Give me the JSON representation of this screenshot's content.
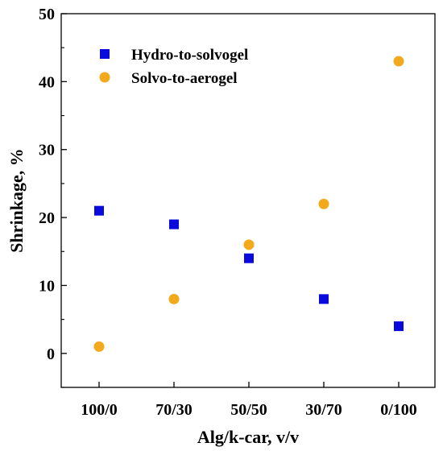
{
  "chart_data": {
    "type": "scatter",
    "categories": [
      "100/0",
      "70/30",
      "50/50",
      "30/70",
      "0/100"
    ],
    "series": [
      {
        "name": "Hydro-to-solvogel",
        "marker": "square",
        "color": "#0a0adc",
        "values": [
          21,
          19,
          14,
          8,
          4
        ]
      },
      {
        "name": "Solvo-to-aerogel",
        "marker": "circle",
        "color": "#f2a91c",
        "values": [
          1,
          8,
          16,
          22,
          43
        ]
      }
    ],
    "xlabel": "Alg/k-car, v/v",
    "ylabel": "Shrinkage, %",
    "ylim": [
      -5,
      50
    ],
    "yticks": [
      0,
      10,
      20,
      30,
      40,
      50
    ],
    "legend_position": "top-left",
    "grid": false
  }
}
